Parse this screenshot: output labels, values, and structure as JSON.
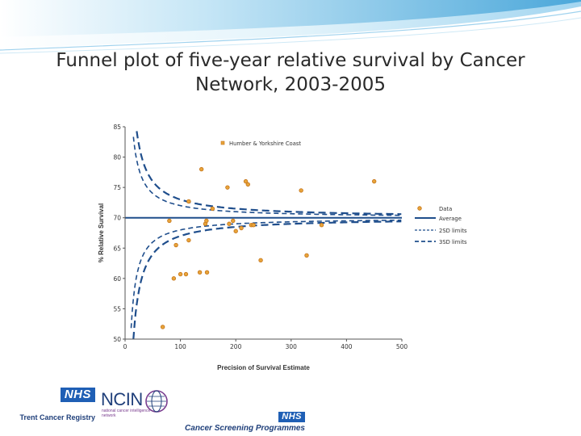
{
  "slide": {
    "title_line1": "Funnel plot of five-year relative survival by Cancer",
    "title_line2": "Network, 2003-2005",
    "accent_color": "#3b9fd6"
  },
  "logos": {
    "trent_nhs": "NHS",
    "trent_caption": "Trent Cancer Registry",
    "ncin_word": "NCIN",
    "ncin_sub": "national cancer intelligence network",
    "screening_nhs": "NHS",
    "screening_caption": "Cancer Screening Programmes"
  },
  "chart_data": {
    "type": "scatter",
    "title": "",
    "xlabel": "Precision of Survival Estimate",
    "ylabel": "% Relative Survival",
    "xlim": [
      0,
      500
    ],
    "ylim": [
      50,
      85
    ],
    "xticks": [
      "0",
      "100",
      "200",
      "300",
      "400",
      "500"
    ],
    "yticks": [
      "50",
      "55",
      "60",
      "65",
      "70",
      "75",
      "80",
      "85"
    ],
    "grid": false,
    "legend_position": "right",
    "legend": [
      "Data",
      "Average",
      "2SD limits",
      "3SD limits"
    ],
    "average": 70,
    "highlight": {
      "label": "Humber & Yorkshire Coast",
      "x": 450,
      "y": 76
    },
    "points": [
      {
        "x": 68,
        "y": 52
      },
      {
        "x": 80,
        "y": 69.5
      },
      {
        "x": 88,
        "y": 60
      },
      {
        "x": 92,
        "y": 65.5
      },
      {
        "x": 100,
        "y": 60.7
      },
      {
        "x": 110,
        "y": 60.7
      },
      {
        "x": 115,
        "y": 66.3
      },
      {
        "x": 115,
        "y": 72.7
      },
      {
        "x": 135,
        "y": 61
      },
      {
        "x": 138,
        "y": 78
      },
      {
        "x": 145,
        "y": 69
      },
      {
        "x": 147,
        "y": 69.5
      },
      {
        "x": 148,
        "y": 61
      },
      {
        "x": 158,
        "y": 71.5
      },
      {
        "x": 185,
        "y": 75
      },
      {
        "x": 188,
        "y": 69
      },
      {
        "x": 195,
        "y": 69.5
      },
      {
        "x": 200,
        "y": 67.8
      },
      {
        "x": 210,
        "y": 68.3
      },
      {
        "x": 218,
        "y": 76
      },
      {
        "x": 222,
        "y": 75.5
      },
      {
        "x": 228,
        "y": 68.8
      },
      {
        "x": 232,
        "y": 68.8
      },
      {
        "x": 245,
        "y": 63
      },
      {
        "x": 318,
        "y": 74.5
      },
      {
        "x": 328,
        "y": 63.8
      },
      {
        "x": 355,
        "y": 68.8
      },
      {
        "x": 450,
        "y": 76
      }
    ],
    "limits": {
      "sd2_k": 200,
      "sd3_k": 300
    },
    "colors": {
      "point": "#e8a43a",
      "point_edge": "#c4741a",
      "line": "#1f4e8c"
    }
  }
}
